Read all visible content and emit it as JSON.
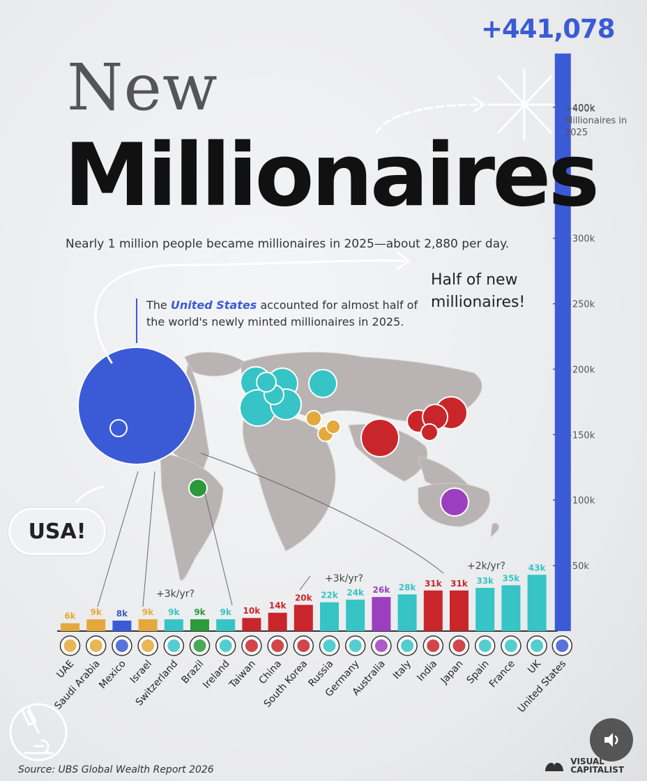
{
  "header": {
    "title_line1": "New",
    "title_line2": "Millionaires",
    "subtitle": "Nearly 1 million people became millionaires in 2025—about 2,880 per day."
  },
  "annotations": {
    "us_note_prefix": "The ",
    "us_note_highlight": "United States",
    "us_note_suffix": " accounted for almost half of the world's newly minted millionaires in 2025.",
    "half_note": "Half of new millionaires!",
    "usa_bubble": "USA!",
    "total_label": "+441,078",
    "max_note": "+400k Millionaires in 2025",
    "rate_note_left": "+3k/yr?",
    "rate_note_mid": "+3k/yr?",
    "rate_note_right": "+2k/yr?"
  },
  "footer": {
    "source": "Source: UBS Global Wealth Report 2026",
    "brand_line1": "VISUAL",
    "brand_line2": "CAPITALIST"
  },
  "icons": {
    "microscope": "microscope-icon",
    "sound": "speaker-icon",
    "brand": "visual-capitalist-logo-icon"
  },
  "colors": {
    "blue": "#3b5bd6",
    "teal": "#36c4c6",
    "orange": "#e4a83c",
    "red": "#c9262b",
    "green": "#2a9a3a",
    "purple": "#9b3fbf"
  },
  "chart_data": {
    "type": "bar",
    "title": "New Millionaires",
    "ylim": [
      0,
      450000
    ],
    "ytick_labels": [
      "+50k",
      "+100k",
      "+150k",
      "+200k",
      "+250k",
      "+300k",
      "+400k"
    ],
    "ytick_values": [
      50000,
      100000,
      150000,
      200000,
      250000,
      300000,
      400000
    ],
    "categories": [
      "UAE",
      "Saudi Arabia",
      "Mexico",
      "Israel",
      "Switzerland",
      "Brazil",
      "Ireland",
      "Taiwan",
      "China",
      "South Korea",
      "Russia",
      "Germany",
      "Australia",
      "Italy",
      "India",
      "Japan",
      "Spain",
      "France",
      "UK",
      "United States"
    ],
    "values": [
      6000,
      9000,
      8000,
      9000,
      9000,
      9000,
      9000,
      10000,
      14000,
      20000,
      22000,
      24000,
      26000,
      28000,
      31000,
      31000,
      33000,
      35000,
      43000,
      441078
    ],
    "value_labels": [
      "6k",
      "9k",
      "8k",
      "9k",
      "9k",
      "9k",
      "9k",
      "10k",
      "14k",
      "20k",
      "22k",
      "24k",
      "26k",
      "28k",
      "31k",
      "31k",
      "33k",
      "35k",
      "43k",
      "+441,078"
    ],
    "bar_colors": [
      "orange",
      "orange",
      "blue",
      "orange",
      "teal",
      "green",
      "teal",
      "red",
      "red",
      "red",
      "teal",
      "teal",
      "purple",
      "teal",
      "red",
      "red",
      "teal",
      "teal",
      "teal",
      "blue"
    ],
    "grid": false,
    "legend": "none"
  }
}
